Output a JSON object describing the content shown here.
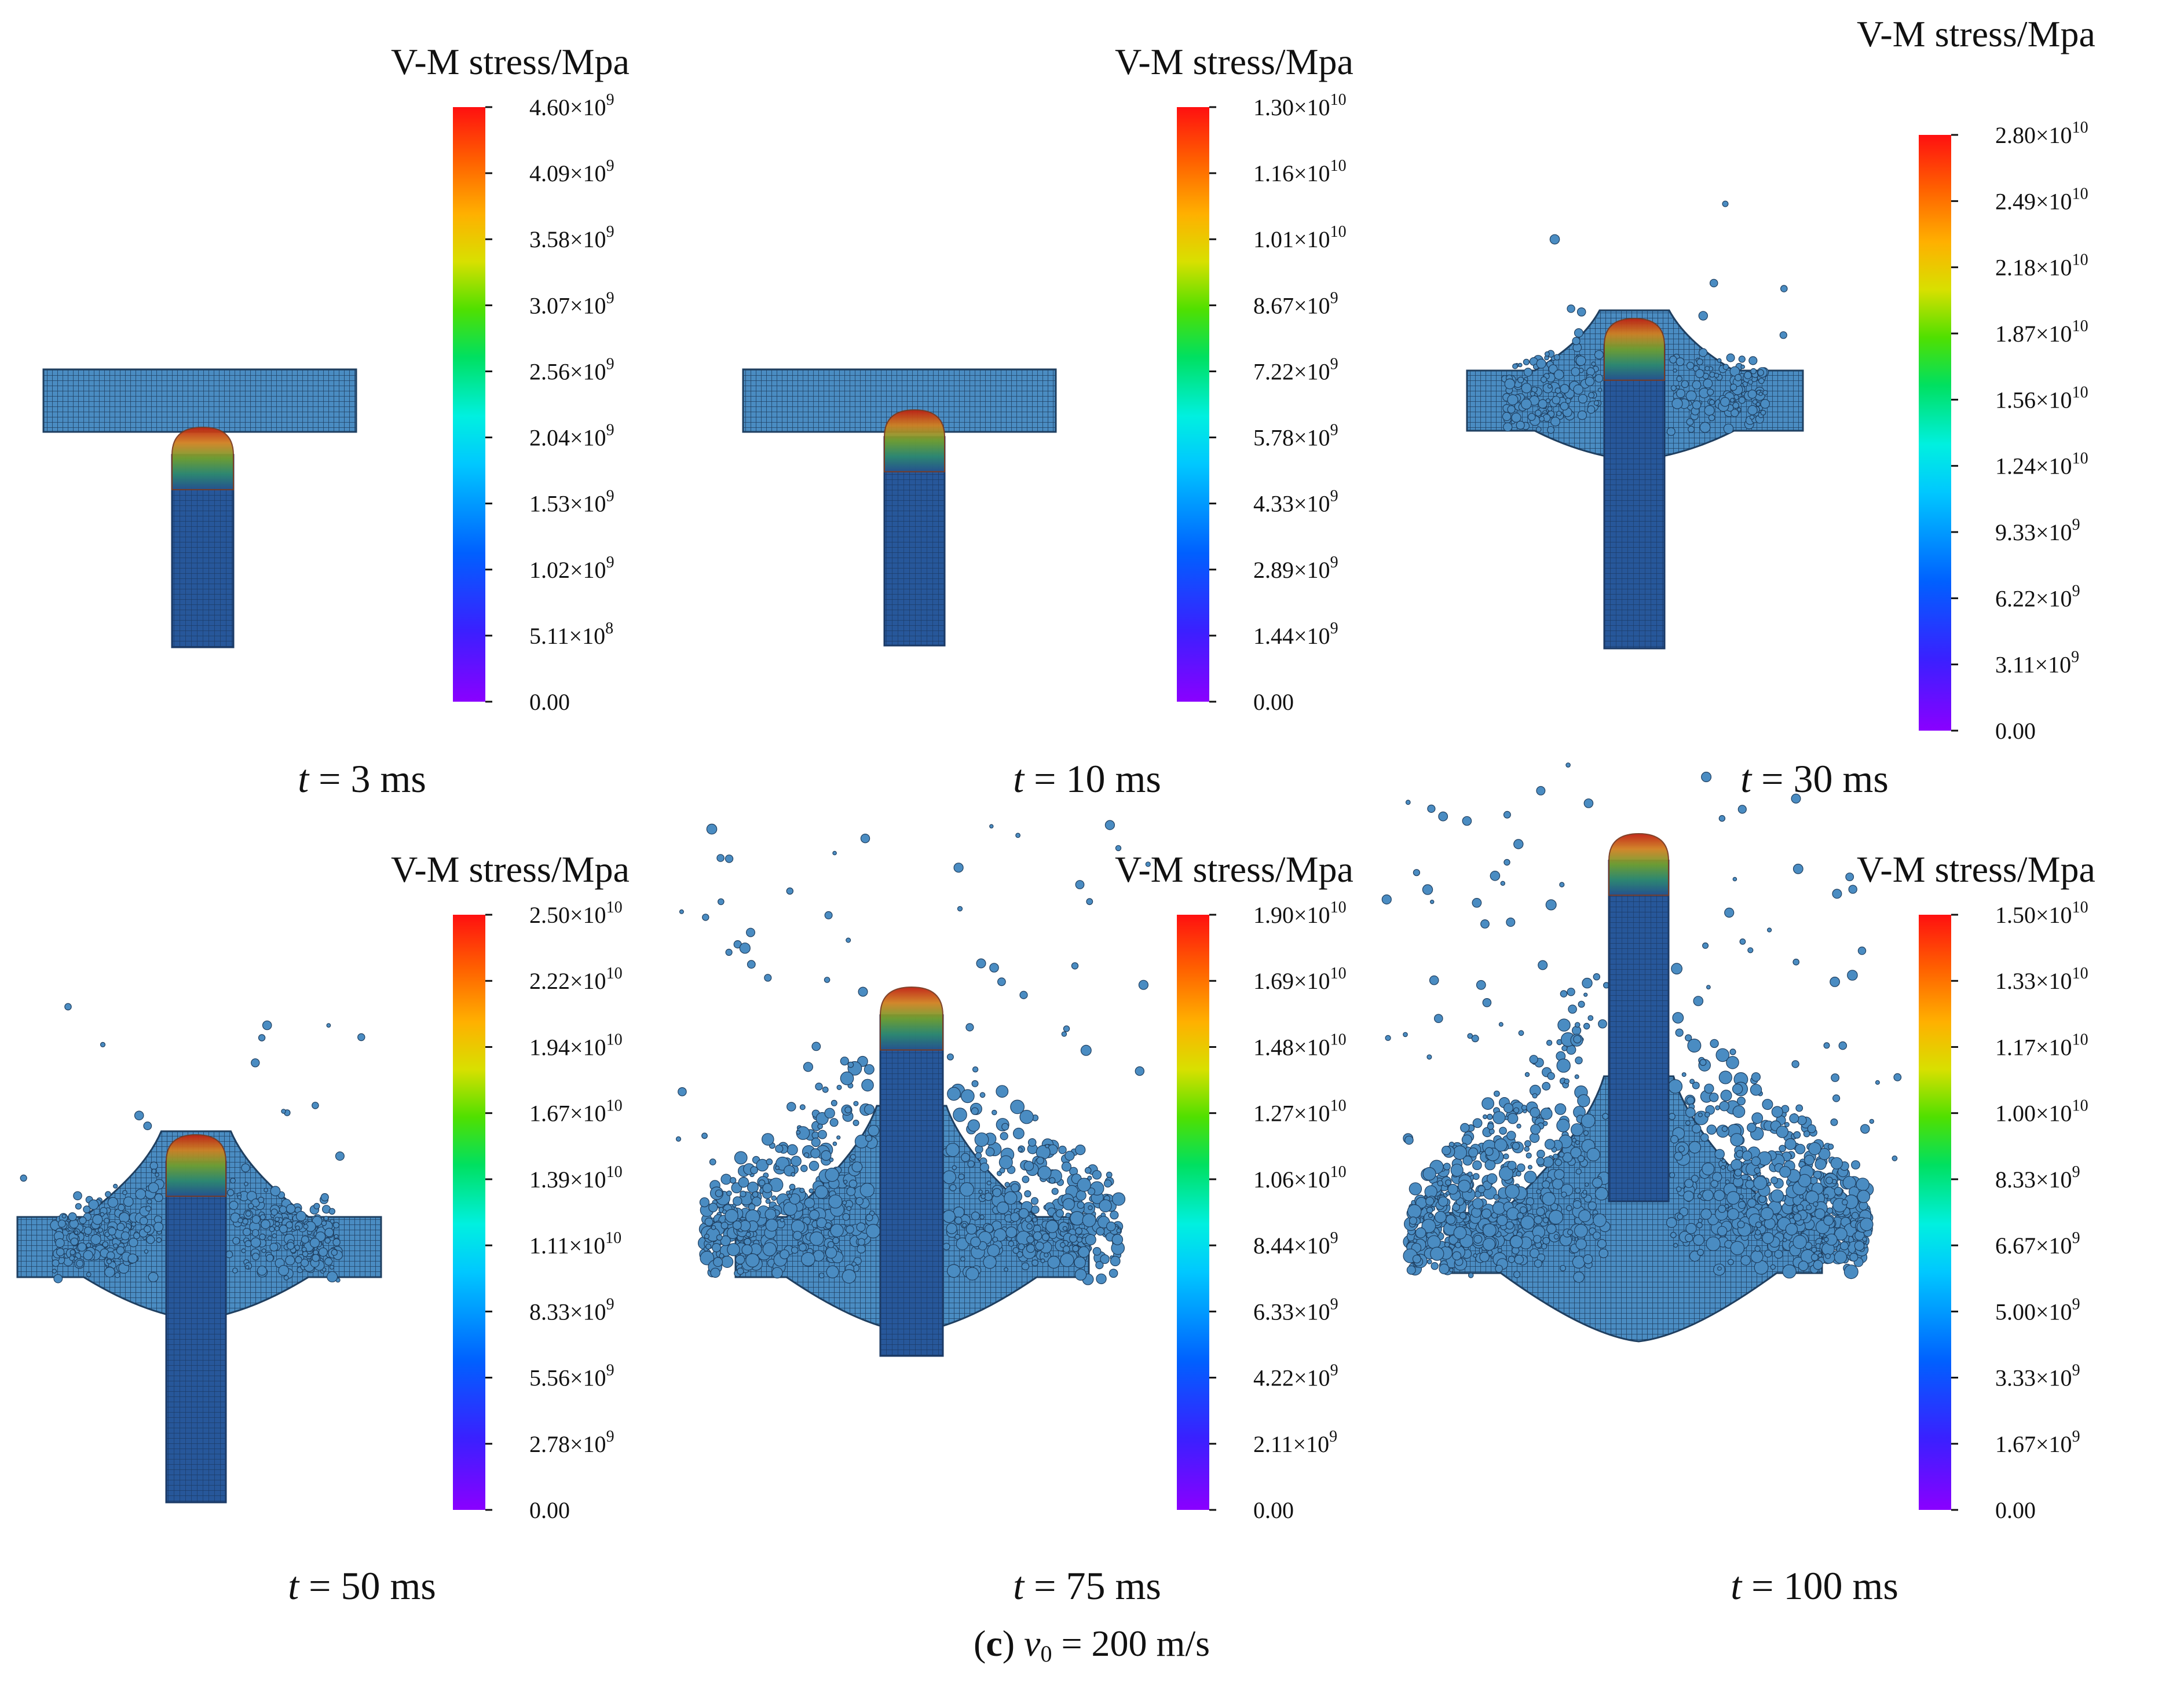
{
  "figure": {
    "caption_letter": "c",
    "caption_var_main": "v",
    "caption_var_sub": "0",
    "caption_rest": " = 200 m/s",
    "caption_open": "(",
    "caption_close": ")"
  },
  "panels": [
    {
      "id": "p1",
      "time_var": "t",
      "time_text": " = 3 ms",
      "colorbar_title": "V-M stress/Mpa",
      "ticks": [
        "4.60×10^9",
        "4.09×10^9",
        "3.58×10^9",
        "3.07×10^9",
        "2.56×10^9",
        "2.04×10^9",
        "1.53×10^9",
        "1.02×10^9",
        "5.11×10^8",
        "0.00"
      ],
      "penetration_stage": 0,
      "debris_level": 0
    },
    {
      "id": "p2",
      "time_var": "t",
      "time_text": " = 10 ms",
      "colorbar_title": "V-M stress/Mpa",
      "ticks": [
        "1.30×10^10",
        "1.16×10^10",
        "1.01×10^10",
        "8.67×10^9",
        "7.22×10^9",
        "5.78×10^9",
        "4.33×10^9",
        "2.89×10^9",
        "1.44×10^9",
        "0.00"
      ],
      "penetration_stage": 0.05,
      "debris_level": 0
    },
    {
      "id": "p3",
      "time_var": "t",
      "time_text": " = 30 ms",
      "colorbar_title": "V-M stress/Mpa",
      "ticks": [
        "2.80×10^10",
        "2.49×10^10",
        "2.18×10^10",
        "1.87×10^10",
        "1.56×10^10",
        "1.24×10^10",
        "9.33×10^9",
        "6.22×10^9",
        "3.11×10^9",
        "0.00"
      ],
      "penetration_stage": 0.3,
      "debris_level": 1
    },
    {
      "id": "p4",
      "time_var": "t",
      "time_text": " = 50 ms",
      "colorbar_title": "V-M stress/Mpa",
      "ticks": [
        "2.50×10^10",
        "2.22×10^10",
        "1.94×10^10",
        "1.67×10^10",
        "1.39×10^10",
        "1.11×10^10",
        "8.33×10^9",
        "5.56×10^9",
        "2.78×10^9",
        "0.00"
      ],
      "penetration_stage": 0.45,
      "debris_level": 2
    },
    {
      "id": "p5",
      "time_var": "t",
      "time_text": " = 75 ms",
      "colorbar_title": "V-M stress/Mpa",
      "ticks": [
        "1.90×10^10",
        "1.69×10^10",
        "1.48×10^10",
        "1.27×10^10",
        "1.06×10^10",
        "8.44×10^9",
        "6.33×10^9",
        "4.22×10^9",
        "2.11×10^9",
        "0.00"
      ],
      "penetration_stage": 0.7,
      "debris_level": 3
    },
    {
      "id": "p6",
      "time_var": "t",
      "time_text": " = 100 ms",
      "colorbar_title": "V-M stress/Mpa",
      "ticks": [
        "1.50×10^10",
        "1.33×10^10",
        "1.17×10^10",
        "1.00×10^10",
        "8.33×10^9",
        "6.67×10^9",
        "5.00×10^9",
        "3.33×10^9",
        "1.67×10^9",
        "0.00"
      ],
      "penetration_stage": 1.0,
      "debris_level": 4
    }
  ],
  "colors": {
    "plate": "#3f7fb5",
    "plate_grid": "#1f3f60",
    "rod": "#25528f",
    "rod_grid": "#1b3a66",
    "debris": "#3f7fb5",
    "colormap": [
      "#8a00ff",
      "#3a20ff",
      "#0066ff",
      "#00b0ff",
      "#00f0f0",
      "#00e080",
      "#40e000",
      "#c0e000",
      "#ffd000",
      "#ff8000",
      "#ff2000",
      "#ff0000"
    ]
  }
}
